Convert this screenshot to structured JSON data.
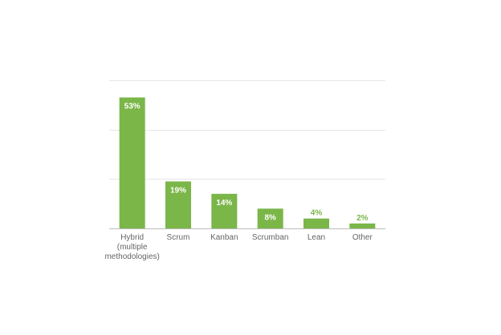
{
  "chart_data": {
    "type": "bar",
    "categories": [
      [
        "Hybrid",
        "(multiple",
        "methodologies)"
      ],
      [
        "Scrum"
      ],
      [
        "Kanban"
      ],
      [
        "Scrumban"
      ],
      [
        "Lean"
      ],
      [
        "Other"
      ]
    ],
    "values": [
      53,
      19,
      14,
      8,
      4,
      2
    ],
    "data_labels": [
      "53%",
      "19%",
      "14%",
      "8%",
      "4%",
      "2%"
    ],
    "ylim": [
      0,
      60
    ],
    "grid": true,
    "colors": {
      "bar": "#7ab648",
      "label_inside": "#ffffff",
      "label_outside": "#7ab648",
      "gridline": "#e6e6e6",
      "axis": "#bbbbbb"
    }
  }
}
